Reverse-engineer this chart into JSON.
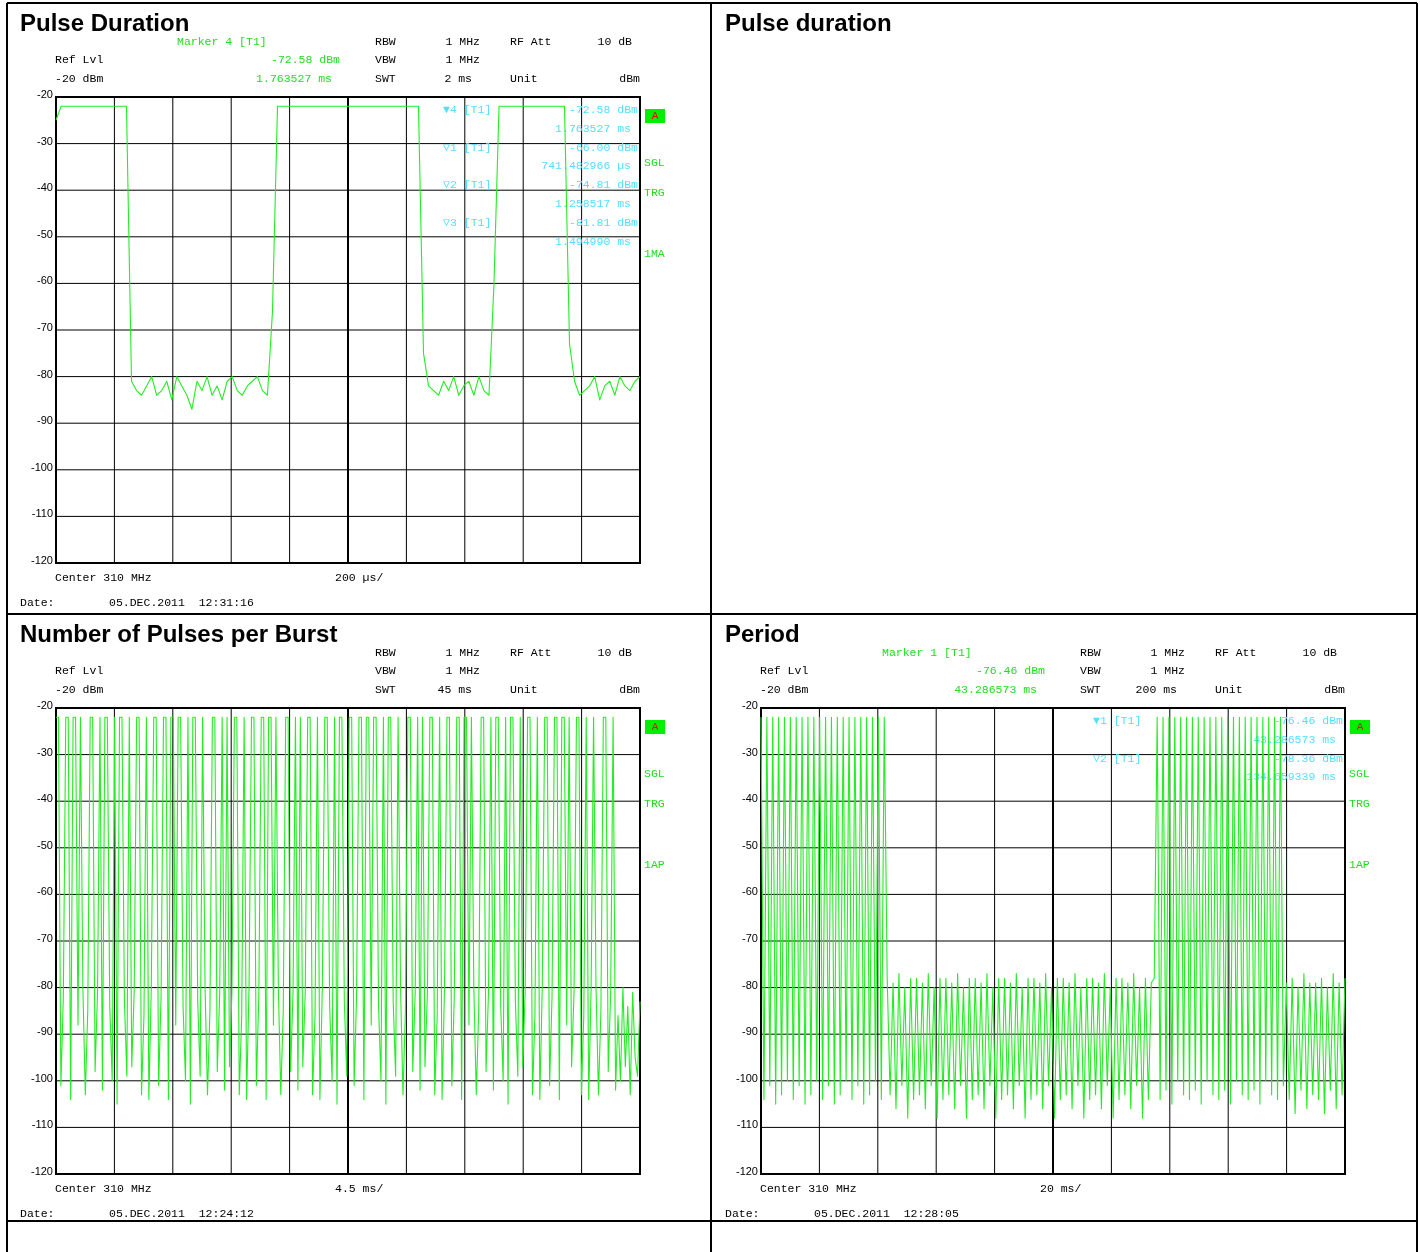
{
  "chart_data": [
    {
      "type": "line",
      "title": "Pulse Duration",
      "ylim": [
        -120,
        -20
      ],
      "yticks": [
        -20,
        -30,
        -40,
        -50,
        -60,
        -70,
        -80,
        -90,
        -100,
        -110,
        -120
      ],
      "grid": true,
      "tick_labels": "y",
      "annotations": [
        "Marker 4 [T1]",
        "-72.58 dBm",
        "1.763527 ms",
        "Ref Lvl",
        "-20 dBm",
        "RBW",
        "1 MHz",
        "VBW",
        "1 MHz",
        "SWT",
        "2 ms",
        "RF Att",
        "10 dB",
        "Unit",
        "dBm",
        "A",
        "SGL",
        "TRG",
        "1MA",
        "Center 310 MHz",
        "200 µs/",
        "Date:",
        "05.DEC.2011  12:31:16",
        "▼4 [T1]",
        "-72.58 dBm",
        "1.763527 ms",
        "▽1 [T1]",
        "-66.00 dBm",
        "741.482966 µs",
        "▽2 [T1]",
        "-74.81 dBm",
        "1.258517 ms",
        "▽3 [T1]",
        "-81.81 dBm",
        "1.494990 ms"
      ],
      "categories": [
        null,
        null,
        null,
        null,
        null,
        null,
        null,
        null,
        null,
        null,
        null,
        null,
        null,
        null,
        null,
        null,
        null,
        null,
        null,
        null,
        null,
        null,
        null,
        null,
        null,
        null,
        null,
        null,
        null,
        null,
        null,
        null,
        null,
        null,
        null,
        null,
        null,
        null,
        null,
        null,
        null,
        null,
        null,
        null,
        null,
        null,
        null,
        null,
        null,
        null,
        null,
        null,
        null,
        null,
        null,
        null,
        null,
        null,
        null,
        null,
        null,
        null,
        null,
        null,
        null,
        null,
        null,
        null,
        null,
        null,
        null,
        null,
        null,
        null,
        null,
        null,
        null,
        null,
        null,
        null,
        null,
        null,
        null,
        null,
        null,
        null,
        null,
        null,
        null,
        null,
        null,
        null,
        null,
        null,
        null,
        null,
        null,
        null,
        null,
        null,
        null,
        null,
        null,
        null,
        null,
        null,
        null,
        null,
        null,
        null,
        null,
        null,
        null,
        null,
        null,
        null,
        null
      ],
      "series": [
        {
          "color": "#22ee22",
          "values": [
            -25,
            -22,
            -22,
            -22,
            -22,
            -22,
            -22,
            -22,
            -22,
            -22,
            -22,
            -22,
            -22,
            -22,
            -22,
            -81,
            -83,
            -84,
            -82,
            -80,
            -84,
            -83,
            -81,
            -85,
            -80,
            -82,
            -84,
            -87,
            -81,
            -83,
            -80,
            -84,
            -82,
            -85,
            -81,
            -80,
            -83,
            -84,
            -82,
            -81,
            -80,
            -83,
            -84,
            -66,
            -22,
            -22,
            -22,
            -22,
            -22,
            -22,
            -22,
            -22,
            -22,
            -22,
            -22,
            -22,
            -22,
            -22,
            -22,
            -22,
            -22,
            -22,
            -22,
            -22,
            -22,
            -22,
            -22,
            -22,
            -22,
            -22,
            -22,
            -22,
            -22,
            -75,
            -82,
            -83,
            -84,
            -81,
            -83,
            -80,
            -84,
            -82,
            -81,
            -84,
            -80,
            -83,
            -84,
            -60,
            -22,
            -22,
            -22,
            -22,
            -22,
            -22,
            -22,
            -22,
            -22,
            -22,
            -22,
            -22,
            -22,
            -22,
            -73,
            -81,
            -84,
            -83,
            -82,
            -80,
            -85,
            -82,
            -81,
            -84,
            -80,
            -82,
            -83,
            -81,
            -80
          ]
        }
      ]
    },
    {
      "type": "other",
      "title": "Pulse duration"
    },
    {
      "type": "line",
      "title": "Number of Pulses per Burst",
      "ylim": [
        -120,
        -20
      ],
      "yticks": [
        -20,
        -30,
        -40,
        -50,
        -60,
        -70,
        -80,
        -90,
        -100,
        -110,
        -120
      ],
      "grid": true,
      "tick_labels": "y",
      "annotations": [
        "Ref Lvl",
        "-20 dBm",
        "RBW",
        "1 MHz",
        "VBW",
        "1 MHz",
        "SWT",
        "45 ms",
        "RF Att",
        "10 dB",
        "Unit",
        "dBm",
        "A",
        "SGL",
        "TRG",
        "1AP",
        "Center 310 MHz",
        "4.5 ms/",
        "Date:",
        "05.DEC.2011  12:24:12"
      ],
      "categories": [
        null,
        null,
        null,
        null,
        null,
        null,
        null,
        null,
        null,
        null,
        null,
        null,
        null,
        null,
        null,
        null,
        null,
        null,
        null,
        null,
        null,
        null,
        null,
        null,
        null,
        null,
        null,
        null,
        null,
        null,
        null,
        null,
        null,
        null,
        null,
        null,
        null,
        null,
        null,
        null,
        null,
        null,
        null,
        null,
        null,
        null,
        null,
        null,
        null,
        null,
        null,
        null,
        null,
        null,
        null,
        null,
        null,
        null,
        null,
        null,
        null,
        null,
        null,
        null,
        null,
        null,
        null,
        null,
        null,
        null,
        null,
        null,
        null,
        null,
        null,
        null,
        null,
        null,
        null,
        null,
        null,
        null,
        null,
        null,
        null,
        null,
        null,
        null,
        null,
        null,
        null,
        null,
        null,
        null,
        null,
        null,
        null,
        null,
        null,
        null,
        null,
        null,
        null,
        null,
        null,
        null,
        null,
        null,
        null,
        null,
        null,
        null,
        null,
        null,
        null,
        null,
        null,
        null,
        null,
        null,
        null,
        null,
        null,
        null,
        null,
        null,
        null,
        null,
        null,
        null,
        null,
        null,
        null,
        null,
        null,
        null,
        null,
        null,
        null,
        null,
        null,
        null,
        null,
        null,
        null,
        null,
        null,
        null,
        null,
        null,
        null,
        null,
        null,
        null,
        null,
        null,
        null,
        null,
        null,
        null,
        null,
        null,
        null,
        null,
        null,
        null,
        null,
        null,
        null,
        null,
        null,
        null,
        null,
        null,
        null,
        null,
        null,
        null,
        null,
        null,
        null,
        null,
        null,
        null,
        null,
        null,
        null,
        null,
        null,
        null,
        null,
        null,
        null,
        null,
        null,
        null,
        null,
        null,
        null,
        null,
        null,
        null,
        null,
        null,
        null,
        null,
        null,
        null,
        null,
        null,
        null,
        null,
        null,
        null,
        null,
        null,
        null,
        null,
        null,
        null,
        null,
        null,
        null,
        null,
        null,
        null,
        null,
        null,
        null,
        null,
        null,
        null,
        null,
        null,
        null,
        null,
        null,
        null,
        null,
        null
      ],
      "series": [
        {
          "color": "#22ee22",
          "values": [
            -22,
            -22,
            -101,
            -82,
            -22,
            -22,
            -104,
            -22,
            -22,
            -88,
            -22,
            -80,
            -103,
            -85,
            -22,
            -22,
            -98,
            -81,
            -22,
            -102,
            -22,
            -22,
            -84,
            -100,
            -22,
            -105,
            -22,
            -22,
            -83,
            -99,
            -22,
            -97,
            -81,
            -22,
            -22,
            -103,
            -86,
            -22,
            -104,
            -80,
            -22,
            -22,
            -101,
            -82,
            -22,
            -22,
            -104,
            -22,
            -22,
            -88,
            -22,
            -22,
            -84,
            -100,
            -22,
            -105,
            -22,
            -22,
            -83,
            -99,
            -22,
            -80,
            -103,
            -85,
            -22,
            -22,
            -98,
            -81,
            -22,
            -102,
            -22,
            -97,
            -81,
            -22,
            -22,
            -103,
            -86,
            -22,
            -104,
            -80,
            -22,
            -22,
            -101,
            -82,
            -22,
            -22,
            -104,
            -22,
            -22,
            -88,
            -22,
            -80,
            -103,
            -85,
            -22,
            -22,
            -98,
            -81,
            -22,
            -102,
            -22,
            -97,
            -81,
            -22,
            -22,
            -103,
            -86,
            -22,
            -104,
            -80,
            -22,
            -22,
            -84,
            -100,
            -22,
            -105,
            -22,
            -22,
            -83,
            -99,
            -22,
            -22,
            -101,
            -82,
            -22,
            -22,
            -104,
            -22,
            -22,
            -88,
            -22,
            -22,
            -84,
            -100,
            -22,
            -105,
            -22,
            -22,
            -83,
            -99,
            -22,
            -80,
            -103,
            -85,
            -22,
            -22,
            -98,
            -81,
            -22,
            -102,
            -22,
            -97,
            -81,
            -22,
            -22,
            -103,
            -86,
            -22,
            -104,
            -80,
            -22,
            -22,
            -101,
            -82,
            -22,
            -22,
            -104,
            -22,
            -22,
            -88,
            -22,
            -80,
            -103,
            -85,
            -22,
            -22,
            -98,
            -81,
            -22,
            -102,
            -22,
            -22,
            -84,
            -100,
            -22,
            -105,
            -22,
            -22,
            -83,
            -99,
            -22,
            -97,
            -81,
            -22,
            -22,
            -103,
            -86,
            -22,
            -104,
            -80,
            -22,
            -22,
            -101,
            -82,
            -22,
            -22,
            -104,
            -22,
            -22,
            -88,
            -22,
            -97,
            -81,
            -22,
            -22,
            -103,
            -86,
            -22,
            -104,
            -80,
            -22,
            -80,
            -103,
            -85,
            -22,
            -22,
            -98,
            -81,
            -22,
            -102,
            -86,
            -100,
            -80,
            -97,
            -84,
            -103,
            -81,
            -95,
            -99,
            -83
          ]
        }
      ]
    },
    {
      "type": "line",
      "title": "Period",
      "ylim": [
        -120,
        -20
      ],
      "yticks": [
        -20,
        -30,
        -40,
        -50,
        -60,
        -70,
        -80,
        -90,
        -100,
        -110,
        -120
      ],
      "grid": true,
      "tick_labels": "y",
      "annotations": [
        "Marker 1 [T1]",
        "-76.46 dBm",
        "43.286573 ms",
        "Ref Lvl",
        "-20 dBm",
        "RBW",
        "1 MHz",
        "VBW",
        "1 MHz",
        "SWT",
        "200 ms",
        "RF Att",
        "10 dB",
        "Unit",
        "dBm",
        "A",
        "SGL",
        "TRG",
        "1AP",
        "Center 310 MHz",
        "20 ms/",
        "Date:",
        "05.DEC.2011  12:28:05",
        "▼1 [T1]",
        "-76.46 dBm",
        "43.286573 ms",
        "▽2 [T1]",
        "-78.36 dBm",
        "134.659339 ms"
      ],
      "categories": [
        null,
        null,
        null,
        null,
        null,
        null,
        null,
        null,
        null,
        null,
        null,
        null,
        null,
        null,
        null,
        null,
        null,
        null,
        null,
        null,
        null,
        null,
        null,
        null,
        null,
        null,
        null,
        null,
        null,
        null,
        null,
        null,
        null,
        null,
        null,
        null,
        null,
        null,
        null,
        null,
        null,
        null,
        null,
        null,
        null,
        null,
        null,
        null,
        null,
        null,
        null,
        null,
        null,
        null,
        null,
        null,
        null,
        null,
        null,
        null,
        null,
        null,
        null,
        null,
        null,
        null,
        null,
        null,
        null,
        null,
        null,
        null,
        null,
        null,
        null,
        null,
        null,
        null,
        null,
        null,
        null,
        null,
        null,
        null,
        null,
        null,
        null,
        null,
        null,
        null,
        null,
        null,
        null,
        null,
        null,
        null,
        null,
        null,
        null,
        null,
        null,
        null,
        null,
        null,
        null,
        null,
        null,
        null,
        null,
        null,
        null,
        null,
        null,
        null,
        null,
        null,
        null,
        null,
        null,
        null,
        null,
        null,
        null,
        null,
        null,
        null,
        null,
        null,
        null,
        null,
        null,
        null,
        null,
        null,
        null,
        null,
        null,
        null,
        null,
        null,
        null,
        null,
        null,
        null,
        null,
        null,
        null,
        null,
        null,
        null,
        null,
        null,
        null,
        null,
        null,
        null,
        null,
        null,
        null,
        null,
        null,
        null,
        null,
        null,
        null,
        null,
        null,
        null,
        null,
        null,
        null,
        null,
        null,
        null,
        null,
        null,
        null,
        null,
        null,
        null,
        null,
        null,
        null,
        null,
        null,
        null,
        null,
        null,
        null,
        null,
        null,
        null,
        null,
        null,
        null,
        null,
        null,
        null,
        null,
        null
      ],
      "series": [
        {
          "color": "#22ee22",
          "values": [
            -22,
            -104,
            -22,
            -101,
            -22,
            -105,
            -22,
            -103,
            -22,
            -100,
            -22,
            -104,
            -22,
            -101,
            -22,
            -105,
            -22,
            -103,
            -22,
            -100,
            -22,
            -104,
            -22,
            -101,
            -22,
            -105,
            -22,
            -103,
            -22,
            -100,
            -22,
            -104,
            -22,
            -101,
            -22,
            -105,
            -22,
            -103,
            -22,
            -100,
            -22,
            -104,
            -22,
            -78,
            -103,
            -79,
            -106,
            -77,
            -101,
            -80,
            -108,
            -78,
            -104,
            -78,
            -103,
            -79,
            -106,
            -77,
            -101,
            -80,
            -108,
            -78,
            -104,
            -78,
            -103,
            -79,
            -106,
            -77,
            -101,
            -80,
            -108,
            -78,
            -104,
            -78,
            -103,
            -79,
            -106,
            -77,
            -101,
            -80,
            -108,
            -78,
            -104,
            -78,
            -103,
            -79,
            -106,
            -77,
            -101,
            -80,
            -108,
            -78,
            -104,
            -78,
            -103,
            -79,
            -106,
            -77,
            -101,
            -80,
            -108,
            -78,
            -104,
            -78,
            -103,
            -79,
            -106,
            -77,
            -101,
            -80,
            -108,
            -78,
            -104,
            -78,
            -103,
            -79,
            -106,
            -77,
            -101,
            -80,
            -108,
            -78,
            -104,
            -78,
            -103,
            -79,
            -106,
            -77,
            -101,
            -80,
            -108,
            -78,
            -104,
            -79,
            -78,
            -22,
            -104,
            -22,
            -102,
            -22,
            -105,
            -22,
            -100,
            -22,
            -103,
            -22,
            -104,
            -22,
            -102,
            -22,
            -105,
            -22,
            -100,
            -22,
            -103,
            -22,
            -104,
            -22,
            -102,
            -22,
            -105,
            -22,
            -100,
            -22,
            -103,
            -22,
            -104,
            -22,
            -102,
            -22,
            -105,
            -22,
            -100,
            -22,
            -103,
            -22,
            -104,
            -22,
            -101,
            -79,
            -104,
            -78,
            -107,
            -80,
            -102,
            -77,
            -106,
            -79,
            -103,
            -79,
            -104,
            -78,
            -107,
            -80,
            -102,
            -77,
            -106,
            -79,
            -103,
            -78
          ]
        }
      ]
    }
  ]
}
